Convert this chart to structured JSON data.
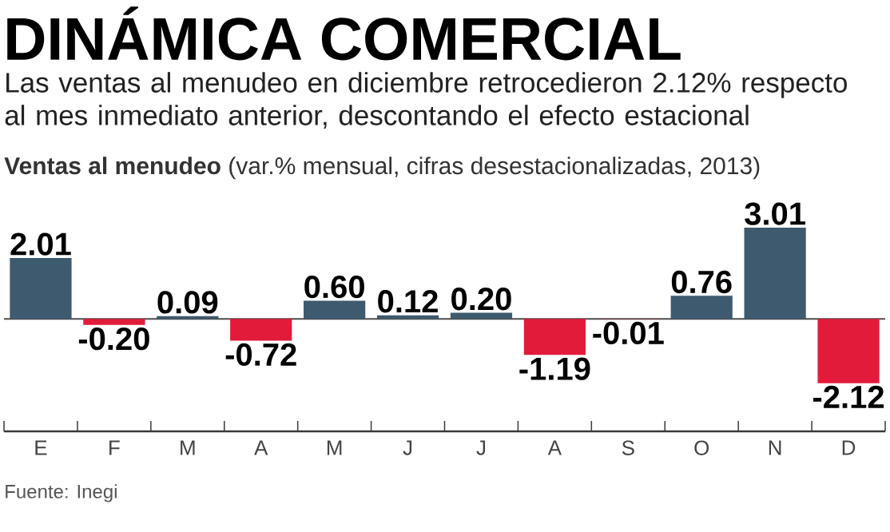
{
  "chart_data": {
    "type": "bar",
    "title": "DINÁMICA COMERCIAL",
    "subtitle": "Las ventas al menudeo en diciembre retrocedieron 2.12% respecto al mes inmediato anterior, descontando el efecto estacional",
    "ylabel": "**Ventas al menudeo** (var.% mensual, cifras desestacionalizadas, 2013)",
    "categories": [
      "E",
      "F",
      "M",
      "A",
      "M",
      "J",
      "J",
      "A",
      "S",
      "O",
      "N",
      "D"
    ],
    "values": [
      2.01,
      -0.2,
      0.09,
      -0.72,
      0.6,
      0.12,
      0.2,
      -1.19,
      -0.01,
      0.76,
      3.01,
      -2.12
    ],
    "colors": [
      "#3e5a6e",
      "#e31b3b",
      "#3e5a6e",
      "#e31b3b",
      "#3e5a6e",
      "#3e5a6e",
      "#3e5a6e",
      "#e31b3b",
      "#e31b3b",
      "#3e5a6e",
      "#3e5a6e",
      "#e31b3b"
    ],
    "value_labels": [
      "2.01",
      "-0.20",
      "0.09",
      "-0.72",
      "0.60",
      "0.12",
      "0.20",
      "-1.19",
      "-0.01",
      "0.76",
      "3.01",
      "-2.12"
    ],
    "tick_labels": "x",
    "ref_lines": [
      {
        "axis": "y",
        "value": 0,
        "color": "#4d4d4d"
      }
    ],
    "annotations": [
      "Fuente: Inegi"
    ]
  }
}
